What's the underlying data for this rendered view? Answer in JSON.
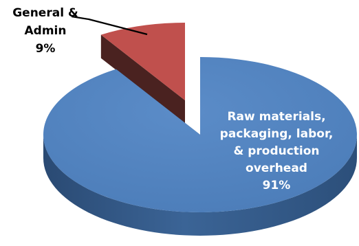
{
  "chart_data": {
    "type": "pie",
    "style": "3d-exploded",
    "categories": [
      "Raw materials, packaging, labor, & production overhead",
      "General & Admin"
    ],
    "values": [
      91,
      9
    ],
    "unit": "%",
    "colors": [
      "#4f81bd",
      "#c0504d"
    ],
    "legend": "none",
    "data_labels": [
      {
        "category": "Raw materials, packaging, labor, & production overhead",
        "lines": [
          "Raw materials,",
          "packaging, labor,",
          "& production",
          "overhead",
          "91%"
        ],
        "color": "#ffffff"
      },
      {
        "category": "General & Admin",
        "lines": [
          "General &",
          "Admin",
          "9%"
        ],
        "color": "#000000"
      }
    ]
  }
}
